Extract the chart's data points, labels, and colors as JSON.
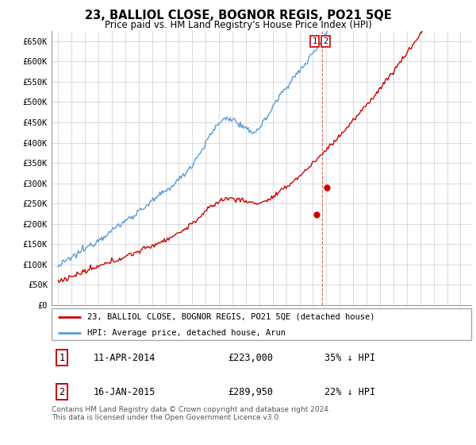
{
  "title": "23, BALLIOL CLOSE, BOGNOR REGIS, PO21 5QE",
  "subtitle": "Price paid vs. HM Land Registry's House Price Index (HPI)",
  "ylim": [
    0,
    670000
  ],
  "yticks": [
    0,
    50000,
    100000,
    150000,
    200000,
    250000,
    300000,
    350000,
    400000,
    450000,
    500000,
    550000,
    600000,
    650000
  ],
  "ytick_labels": [
    "£0",
    "£50K",
    "£100K",
    "£150K",
    "£200K",
    "£250K",
    "£300K",
    "£350K",
    "£400K",
    "£450K",
    "£500K",
    "£550K",
    "£600K",
    "£650K"
  ],
  "hpi_color": "#5b9bd5",
  "price_color": "#cc0000",
  "transaction1_date": 2014.28,
  "transaction1_price": 223000,
  "transaction2_date": 2015.04,
  "transaction2_price": 289950,
  "legend_line1": "23, BALLIOL CLOSE, BOGNOR REGIS, PO21 5QE (detached house)",
  "legend_line2": "HPI: Average price, detached house, Arun",
  "table_row1_num": "1",
  "table_row1_date": "11-APR-2014",
  "table_row1_price": "£223,000",
  "table_row1_pct": "35% ↓ HPI",
  "table_row2_num": "2",
  "table_row2_date": "16-JAN-2015",
  "table_row2_price": "£289,950",
  "table_row2_pct": "22% ↓ HPI",
  "footer": "Contains HM Land Registry data © Crown copyright and database right 2024.\nThis data is licensed under the Open Government Licence v3.0.",
  "background_color": "#ffffff",
  "grid_color": "#cccccc"
}
